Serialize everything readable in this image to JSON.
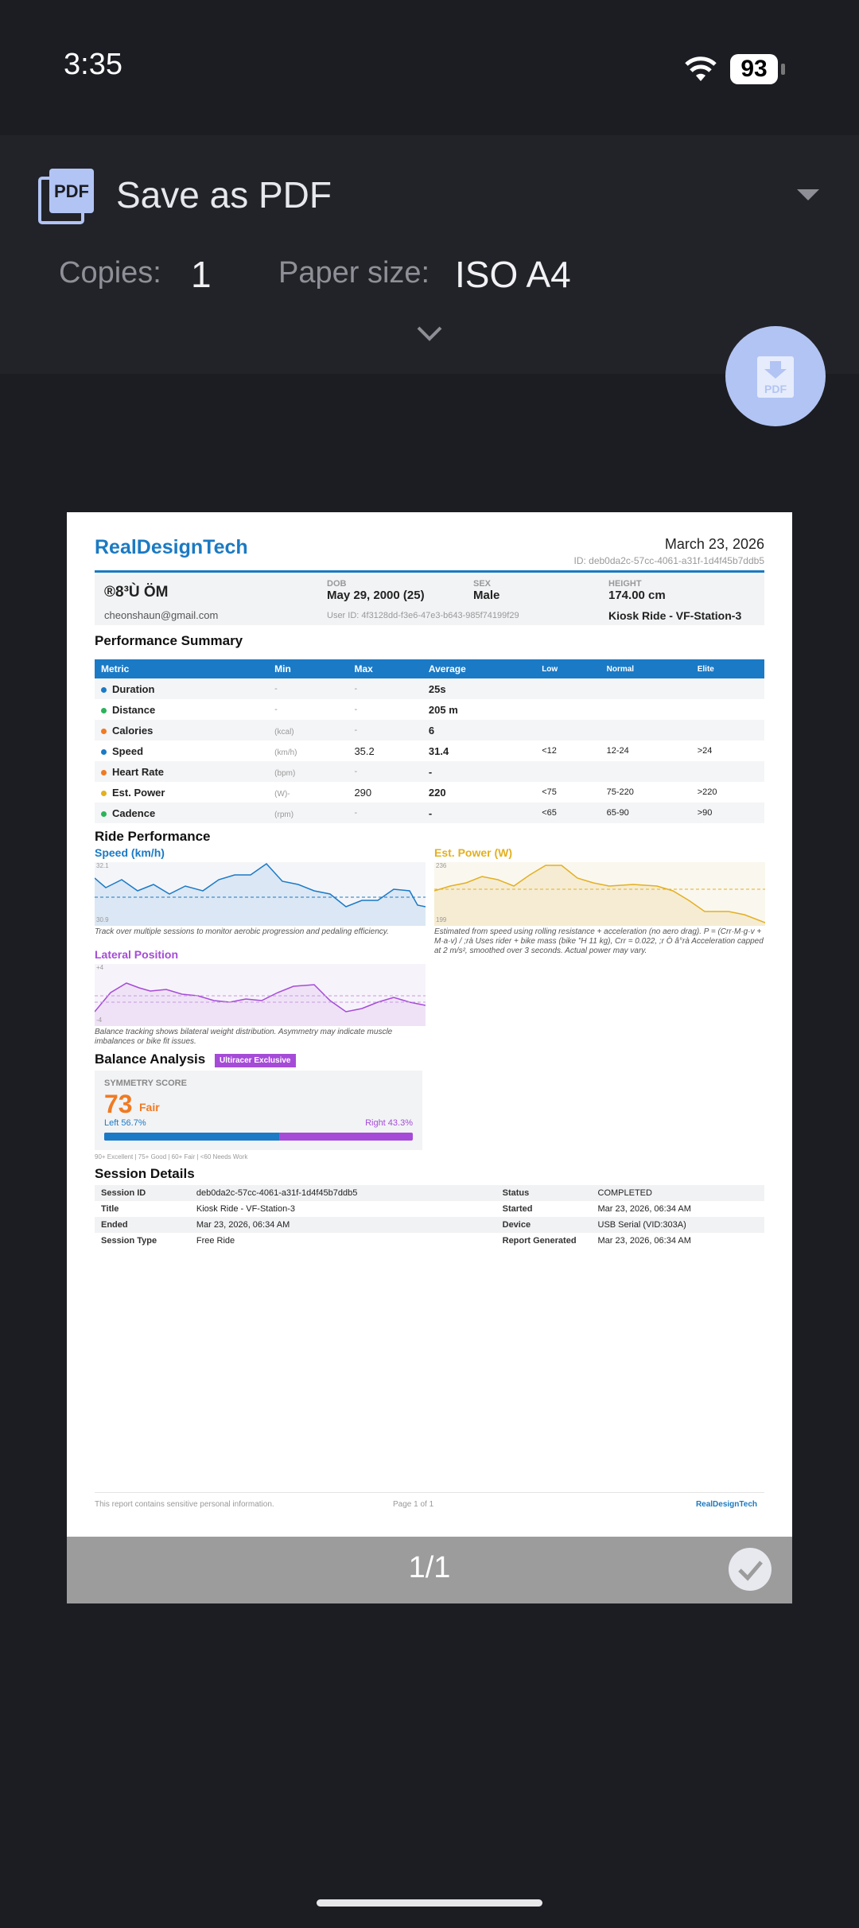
{
  "status_bar": {
    "time": "3:35",
    "battery": "93"
  },
  "print_dialog": {
    "destination": "Save as PDF",
    "copies_label": "Copies:",
    "copies_value": "1",
    "paper_label": "Paper size:",
    "paper_value": "ISO A4",
    "page_indicator": "1/1"
  },
  "report": {
    "brand": "RealDesignTech",
    "date": "March 23, 2026",
    "report_id": "ID: deb0da2c-57cc-4061-a31f-1d4f45b7ddb5",
    "patient": {
      "name": "®8³Ù ÖM",
      "email": "cheonshaun@gmail.com",
      "dob_label": "DOB",
      "dob": "May 29, 2000 (25)",
      "user_id": "User ID: 4f3128dd-f3e6-47e3-b643-985f74199f29",
      "sex_label": "SEX",
      "sex": "Male",
      "height_label": "HEIGHT",
      "height": "174.00 cm",
      "station": "Kiosk Ride - VF-Station-3"
    },
    "summary_title": "Performance Summary",
    "summary_headers": [
      "Metric",
      "Min",
      "Max",
      "Average",
      "Low",
      "Normal",
      "Elite"
    ],
    "summary_rows": [
      {
        "metric": "Duration",
        "color": "#1a7ac6",
        "min": "-",
        "max": "-",
        "avg": "25s",
        "low": "",
        "normal": "",
        "elite": ""
      },
      {
        "metric": "Distance",
        "color": "#2bb35a",
        "min": "-",
        "max": "-",
        "avg": "205 m",
        "low": "",
        "normal": "",
        "elite": ""
      },
      {
        "metric": "Calories",
        "color": "#f07a22",
        "unit": "(kcal)",
        "min": "",
        "max": "-",
        "avg": "6",
        "low": "",
        "normal": "",
        "elite": ""
      },
      {
        "metric": "Speed",
        "color": "#1a7ac6",
        "unit": "(km/h)",
        "min": "",
        "max": "35.2",
        "avg": "31.4",
        "low": "<12",
        "normal": "12-24",
        "elite": ">24"
      },
      {
        "metric": "Heart Rate",
        "color": "#f07a22",
        "unit": "(bpm)",
        "min": "",
        "max": "-",
        "avg": "-",
        "low": "",
        "normal": "",
        "elite": ""
      },
      {
        "metric": "Est. Power",
        "color": "#e3b020",
        "unit": "(W)-",
        "min": "",
        "max": "290",
        "avg": "220",
        "low": "<75",
        "normal": "75-220",
        "elite": ">220"
      },
      {
        "metric": "Cadence",
        "color": "#2bb35a",
        "unit": "(rpm)",
        "min": "",
        "max": "-",
        "avg": "-",
        "low": "<65",
        "normal": "65-90",
        "elite": ">90"
      }
    ],
    "ride_title": "Ride Performance",
    "speed_chart": {
      "title": "Speed (km/h)",
      "ymax": "32.1",
      "ymin": "30.9",
      "caption": "Track over multiple sessions to monitor aerobic progression and pedaling efficiency."
    },
    "power_chart": {
      "title": "Est. Power (W)",
      "ymax": "236",
      "ymin": "199",
      "caption": "Estimated from speed using rolling resistance + acceleration (no aero drag). P = (Crr·M·g·v + M·a·v) / ;rà Uses rider + bike mass (bike \"H 11 kg), Crr = 0.022, ;r Ò  â°rà Acceleration capped at 2 m/s², smoothed over 3 seconds. Actual power may vary."
    },
    "lateral_chart": {
      "title": "Lateral Position",
      "ymax": "+4",
      "ymin": "-4",
      "caption": "Balance tracking shows bilateral weight distribution. Asymmetry may indicate muscle imbalances or bike fit issues."
    },
    "balance": {
      "title": "Balance Analysis",
      "badge": "Ultiracer Exclusive",
      "score_label": "SYMMETRY SCORE",
      "score": "73",
      "rating": "Fair",
      "left": "Left 56.7%",
      "right": "Right 43.3%",
      "left_pct": 56.7,
      "legend": "90+ Excellent | 75+ Good | 60+ Fair | <60 Needs Work"
    },
    "session_title": "Session Details",
    "session": [
      [
        "Session ID",
        "deb0da2c-57cc-4061-a31f-1d4f45b7ddb5",
        "Status",
        "COMPLETED"
      ],
      [
        "Title",
        "Kiosk Ride - VF-Station-3",
        "Started",
        "Mar 23, 2026, 06:34 AM"
      ],
      [
        "Ended",
        "Mar 23, 2026, 06:34 AM",
        "Device",
        "USB Serial (VID:303A)"
      ],
      [
        "Session Type",
        "Free Ride",
        "Report Generated",
        "Mar 23, 2026, 06:34 AM"
      ]
    ],
    "footer_note": "This report contains sensitive personal information.",
    "footer_page": "Page 1 of 1",
    "footer_brand": "RealDesignTech"
  },
  "colors": {
    "brand": "#1b7ac2",
    "speed": "#1a7ac6",
    "power": "#e3b020",
    "lateral": "#a54bd8",
    "fab": "#b2c4f4"
  }
}
